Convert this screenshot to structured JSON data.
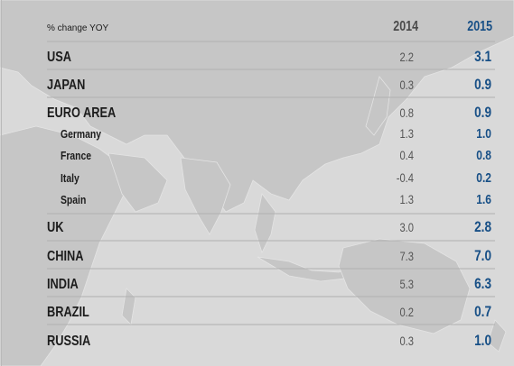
{
  "chart_data": {
    "type": "table",
    "header": {
      "label": "% change YOY",
      "columns": [
        "2014",
        "2015"
      ]
    },
    "rows": [
      {
        "name": "USA",
        "values": [
          2.2,
          3.1
        ],
        "display": [
          "2.2",
          "3.1"
        ],
        "indent": false
      },
      {
        "name": "JAPAN",
        "values": [
          0.3,
          0.9
        ],
        "display": [
          "0.3",
          "0.9"
        ],
        "indent": false
      },
      {
        "name": "EURO AREA",
        "values": [
          0.8,
          0.9
        ],
        "display": [
          "0.8",
          "0.9"
        ],
        "indent": false
      },
      {
        "name": "Germany",
        "values": [
          1.3,
          1.0
        ],
        "display": [
          "1.3",
          "1.0"
        ],
        "indent": true
      },
      {
        "name": "France",
        "values": [
          0.4,
          0.8
        ],
        "display": [
          "0.4",
          "0.8"
        ],
        "indent": true
      },
      {
        "name": "Italy",
        "values": [
          -0.4,
          0.2
        ],
        "display": [
          "-0.4",
          "0.2"
        ],
        "indent": true
      },
      {
        "name": "Spain",
        "values": [
          1.3,
          1.6
        ],
        "display": [
          "1.3",
          "1.6"
        ],
        "indent": true
      },
      {
        "name": "UK",
        "values": [
          3.0,
          2.8
        ],
        "display": [
          "3.0",
          "2.8"
        ],
        "indent": false
      },
      {
        "name": "CHINA",
        "values": [
          7.3,
          7.0
        ],
        "display": [
          "7.3",
          "7.0"
        ],
        "indent": false
      },
      {
        "name": "INDIA",
        "values": [
          5.3,
          6.3
        ],
        "display": [
          "5.3",
          "6.3"
        ],
        "indent": false
      },
      {
        "name": "BRAZIL",
        "values": [
          0.2,
          0.7
        ],
        "display": [
          "0.2",
          "0.7"
        ],
        "indent": false
      },
      {
        "name": "RUSSIA",
        "values": [
          0.3,
          1.0
        ],
        "display": [
          "0.3",
          "1.0"
        ],
        "indent": false
      }
    ]
  },
  "colors": {
    "background": "#d9d9d9",
    "land": "#c4c4c4",
    "text_dark": "#1c1c1c",
    "text_2014": "#555555",
    "text_2015": "#174f86",
    "rule": "#b0b0b0"
  }
}
